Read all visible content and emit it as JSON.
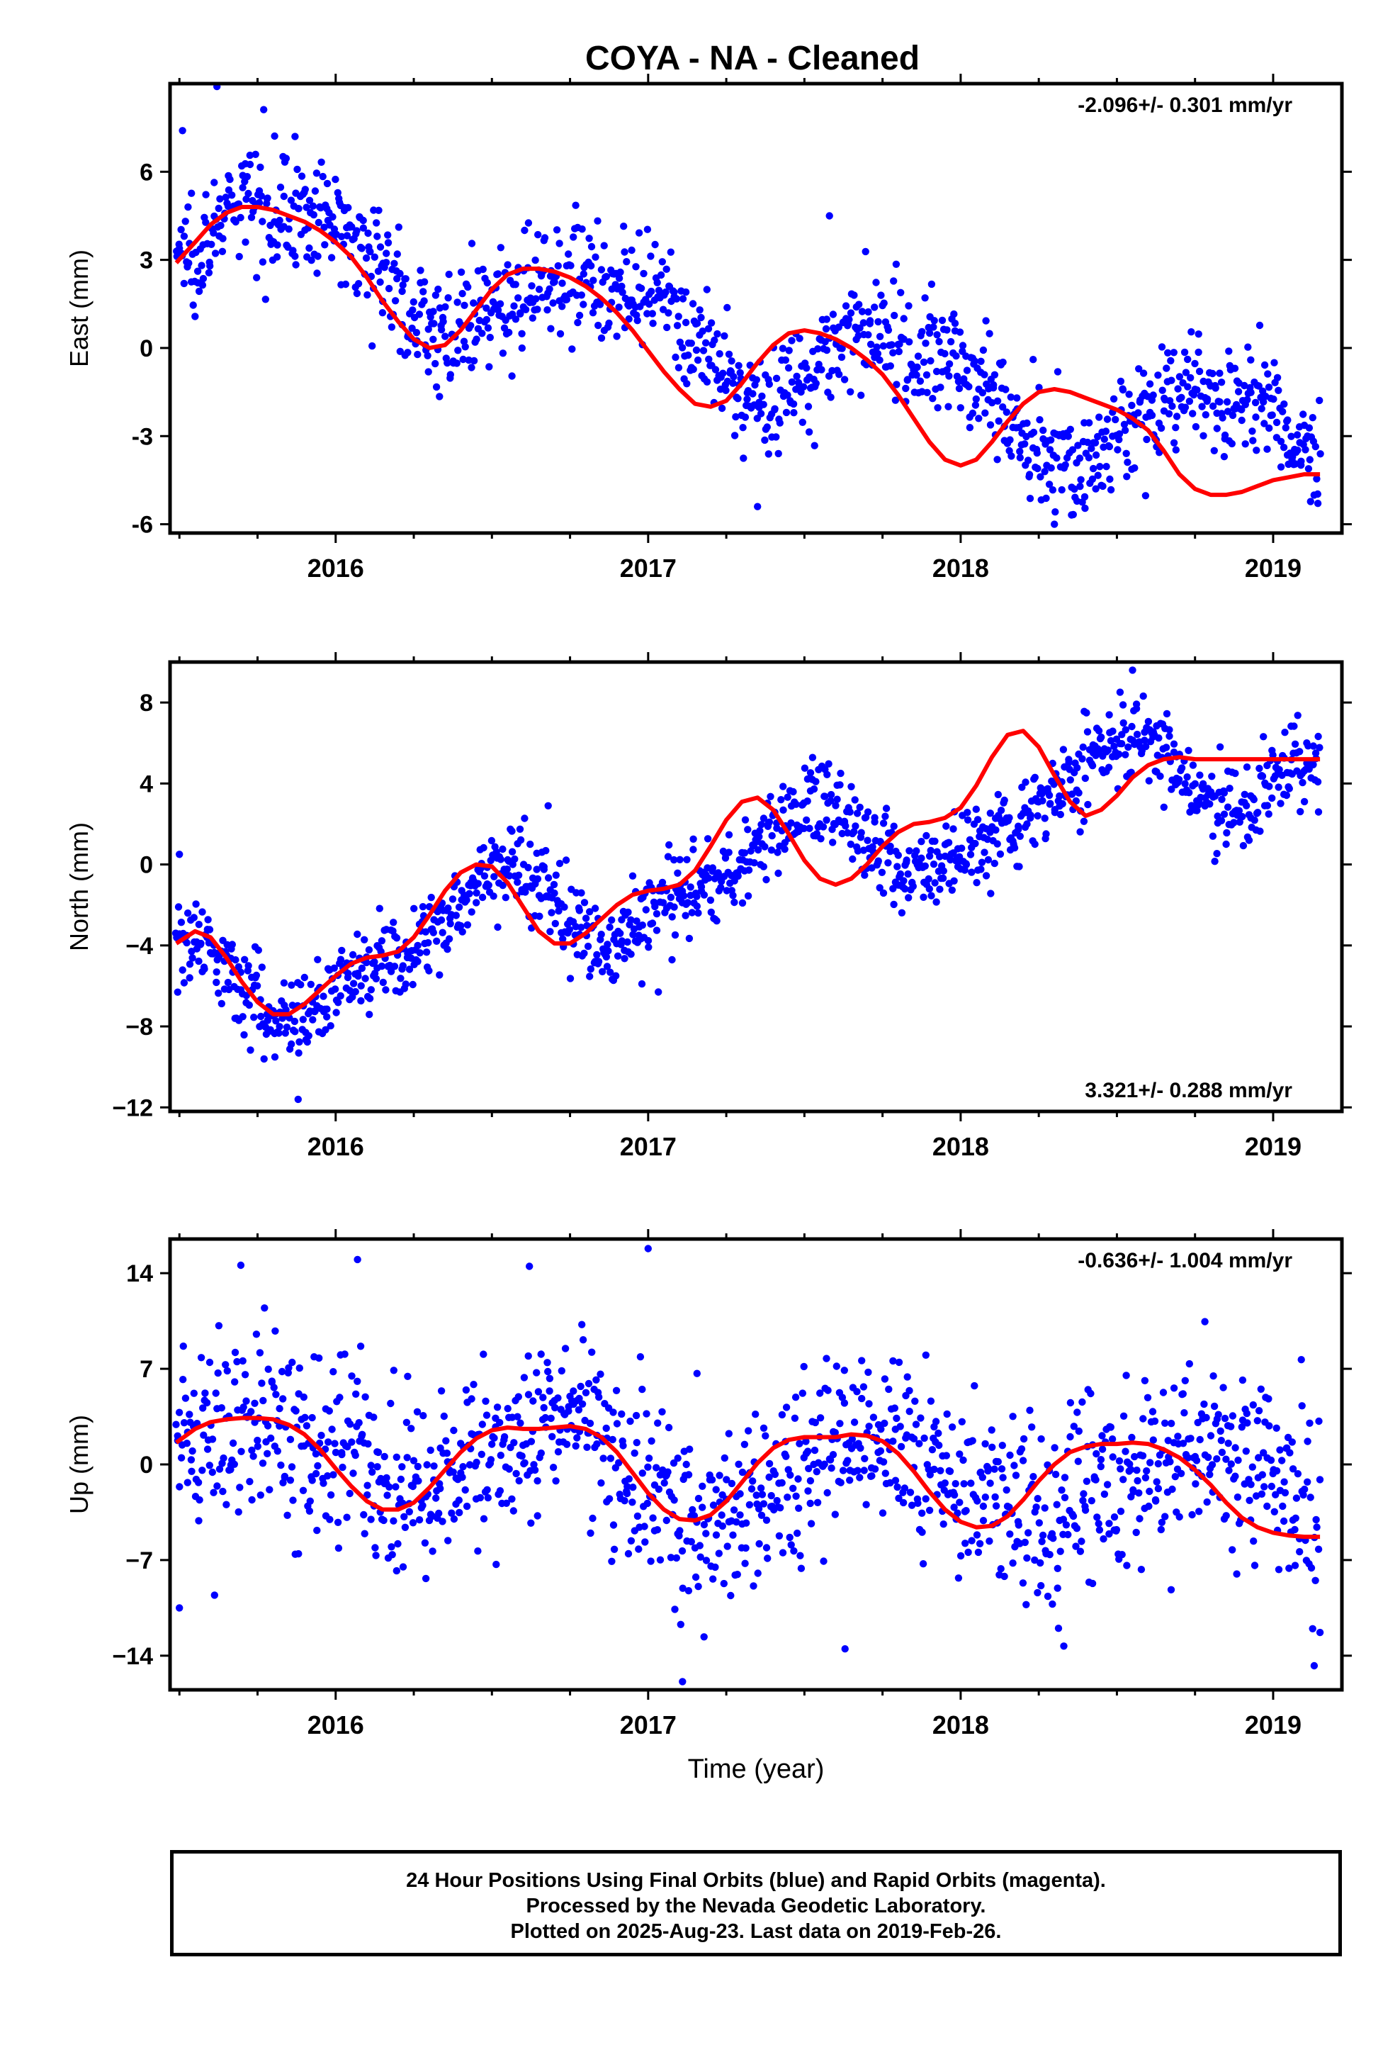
{
  "title": "COYA  - NA - Cleaned",
  "footer": {
    "lines": [
      "24 Hour Positions Using Final Orbits (blue) and Rapid Orbits (magenta).",
      "Processed by the Nevada Geodetic Laboratory.",
      "Plotted on 2025-Aug-23. Last data on 2019-Feb-26."
    ]
  },
  "colors": {
    "points": "#0000ff",
    "fit": "#ff0000",
    "axes": "#000000"
  },
  "chart_data": [
    {
      "type": "scatter",
      "panel": "east",
      "ylabel": "East (mm)",
      "xlabel": "",
      "rate": "-2.096+/- 0.301 mm/yr",
      "rate_position": "top-right",
      "xlim": [
        2015.47,
        2019.22
      ],
      "ylim": [
        -6.3,
        9.0
      ],
      "xticks": [
        2016,
        2017,
        2018,
        2019
      ],
      "xtick_labels": [
        "2016",
        "2017",
        "2018",
        "2019"
      ],
      "yticks": [
        -6,
        -3,
        0,
        3,
        6
      ],
      "ytick_labels": [
        "-6",
        "-3",
        "0",
        "3",
        "6"
      ],
      "series": [
        {
          "kind": "points",
          "x_range": [
            2015.49,
            2019.15
          ],
          "n": 1250,
          "trend": [
            [
              2015.5,
              3.3
            ],
            [
              2015.75,
              5.0
            ],
            [
              2016.0,
              4.2
            ],
            [
              2016.35,
              0.5
            ],
            [
              2016.75,
              2.6
            ],
            [
              2017.0,
              1.6
            ],
            [
              2017.35,
              -1.8
            ],
            [
              2017.7,
              0.5
            ],
            [
              2017.95,
              -0.4
            ],
            [
              2018.35,
              -3.9
            ],
            [
              2018.7,
              -1.6
            ],
            [
              2018.95,
              -2.0
            ],
            [
              2019.15,
              -3.8
            ]
          ],
          "scatter_sd": 0.95,
          "outliers": [
            [
              2015.62,
              8.9
            ],
            [
              2015.51,
              7.4
            ],
            [
              2015.87,
              7.2
            ],
            [
              2016.15,
              1.2
            ],
            [
              2017.35,
              -5.4
            ],
            [
              2018.3,
              -6.0
            ],
            [
              2017.58,
              4.5
            ],
            [
              2016.32,
              1.8
            ]
          ]
        },
        {
          "kind": "fit",
          "x": [
            2015.49,
            2015.55,
            2015.6,
            2015.65,
            2015.7,
            2015.75,
            2015.8,
            2015.85,
            2015.9,
            2015.95,
            2016.0,
            2016.05,
            2016.1,
            2016.15,
            2016.2,
            2016.25,
            2016.3,
            2016.35,
            2016.4,
            2016.45,
            2016.5,
            2016.55,
            2016.6,
            2016.65,
            2016.7,
            2016.75,
            2016.8,
            2016.85,
            2016.9,
            2016.95,
            2017.0,
            2017.05,
            2017.1,
            2017.15,
            2017.2,
            2017.25,
            2017.3,
            2017.35,
            2017.4,
            2017.45,
            2017.5,
            2017.55,
            2017.6,
            2017.65,
            2017.7,
            2017.75,
            2017.8,
            2017.85,
            2017.9,
            2017.95,
            2018.0,
            2018.05,
            2018.1,
            2018.15,
            2018.2,
            2018.25,
            2018.3,
            2018.35,
            2018.4,
            2018.45,
            2018.5,
            2018.55,
            2018.6,
            2018.65,
            2018.7,
            2018.75,
            2018.8,
            2018.85,
            2018.9,
            2018.95,
            2019.0,
            2019.05,
            2019.1,
            2019.15
          ],
          "y": [
            2.9,
            3.6,
            4.2,
            4.6,
            4.8,
            4.8,
            4.7,
            4.5,
            4.3,
            4.0,
            3.6,
            3.1,
            2.4,
            1.6,
            0.9,
            0.3,
            0.0,
            0.1,
            0.6,
            1.3,
            2.0,
            2.5,
            2.7,
            2.7,
            2.6,
            2.4,
            2.1,
            1.7,
            1.2,
            0.6,
            -0.1,
            -0.8,
            -1.4,
            -1.9,
            -2.0,
            -1.8,
            -1.2,
            -0.5,
            0.1,
            0.5,
            0.6,
            0.5,
            0.3,
            0.0,
            -0.4,
            -0.9,
            -1.6,
            -2.4,
            -3.2,
            -3.8,
            -4.0,
            -3.8,
            -3.2,
            -2.5,
            -1.9,
            -1.5,
            -1.4,
            -1.5,
            -1.7,
            -1.9,
            -2.1,
            -2.4,
            -2.8,
            -3.5,
            -4.3,
            -4.8,
            -5.0,
            -5.0,
            -4.9,
            -4.7,
            -4.5,
            -4.4,
            -4.3,
            -4.3
          ]
        }
      ]
    },
    {
      "type": "scatter",
      "panel": "north",
      "ylabel": "North (mm)",
      "xlabel": "",
      "rate": "3.321+/- 0.288 mm/yr",
      "rate_position": "bottom-right",
      "xlim": [
        2015.47,
        2019.22
      ],
      "ylim": [
        -12.2,
        10.0
      ],
      "xticks": [
        2016,
        2017,
        2018,
        2019
      ],
      "xtick_labels": [
        "2016",
        "2017",
        "2018",
        "2019"
      ],
      "yticks": [
        -12,
        -8,
        -4,
        0,
        4,
        8
      ],
      "ytick_labels": [
        "−12",
        "−8",
        "−4",
        "0",
        "4",
        "8"
      ],
      "series": [
        {
          "kind": "points",
          "x_range": [
            2015.49,
            2019.15
          ],
          "n": 1250,
          "trend": [
            [
              2015.5,
              -3.5
            ],
            [
              2015.85,
              -7.3
            ],
            [
              2016.2,
              -4.5
            ],
            [
              2016.55,
              0.0
            ],
            [
              2016.85,
              -3.8
            ],
            [
              2017.15,
              -1.3
            ],
            [
              2017.55,
              3.2
            ],
            [
              2017.85,
              -0.5
            ],
            [
              2018.15,
              1.8
            ],
            [
              2018.55,
              6.3
            ],
            [
              2018.85,
              2.7
            ],
            [
              2019.15,
              5.2
            ]
          ],
          "scatter_sd": 1.05,
          "outliers": [
            [
              2015.5,
              0.5
            ],
            [
              2015.88,
              -11.6
            ],
            [
              2016.68,
              2.9
            ],
            [
              2018.55,
              9.6
            ],
            [
              2017.98,
              2.6
            ],
            [
              2016.98,
              -5.9
            ]
          ]
        },
        {
          "kind": "fit",
          "x": [
            2015.49,
            2015.55,
            2015.6,
            2015.65,
            2015.7,
            2015.75,
            2015.8,
            2015.85,
            2015.9,
            2015.95,
            2016.0,
            2016.05,
            2016.1,
            2016.15,
            2016.2,
            2016.25,
            2016.3,
            2016.35,
            2016.4,
            2016.45,
            2016.5,
            2016.55,
            2016.6,
            2016.65,
            2016.7,
            2016.75,
            2016.8,
            2016.85,
            2016.9,
            2016.95,
            2017.0,
            2017.05,
            2017.1,
            2017.15,
            2017.2,
            2017.25,
            2017.3,
            2017.35,
            2017.4,
            2017.45,
            2017.5,
            2017.55,
            2017.6,
            2017.65,
            2017.7,
            2017.75,
            2017.8,
            2017.85,
            2017.9,
            2017.95,
            2018.0,
            2018.05,
            2018.1,
            2018.15,
            2018.2,
            2018.25,
            2018.3,
            2018.35,
            2018.4,
            2018.45,
            2018.5,
            2018.55,
            2018.6,
            2018.65,
            2018.7,
            2018.75,
            2018.8,
            2018.85,
            2018.9,
            2018.95,
            2019.0,
            2019.05,
            2019.1,
            2019.15
          ],
          "y": [
            -3.9,
            -3.3,
            -3.6,
            -4.6,
            -5.8,
            -6.8,
            -7.4,
            -7.4,
            -6.9,
            -6.2,
            -5.5,
            -4.9,
            -4.6,
            -4.5,
            -4.3,
            -3.6,
            -2.5,
            -1.3,
            -0.4,
            0.0,
            -0.1,
            -0.9,
            -2.1,
            -3.3,
            -3.9,
            -3.9,
            -3.4,
            -2.7,
            -2.0,
            -1.5,
            -1.3,
            -1.2,
            -1.0,
            -0.3,
            0.9,
            2.2,
            3.1,
            3.3,
            2.7,
            1.5,
            0.2,
            -0.7,
            -1.0,
            -0.7,
            0.0,
            0.9,
            1.6,
            2.0,
            2.1,
            2.3,
            2.8,
            3.9,
            5.3,
            6.4,
            6.6,
            5.8,
            4.4,
            3.1,
            2.4,
            2.7,
            3.4,
            4.3,
            4.9,
            5.2,
            5.3,
            5.2,
            5.2,
            5.2,
            5.2,
            5.2,
            5.2,
            5.2,
            5.2,
            5.2
          ]
        }
      ]
    },
    {
      "type": "scatter",
      "panel": "up",
      "ylabel": "Up (mm)",
      "xlabel": "Time (year)",
      "rate": "-0.636+/- 1.004 mm/yr",
      "rate_position": "top-right",
      "xlim": [
        2015.47,
        2019.22
      ],
      "ylim": [
        -16.5,
        16.5
      ],
      "xticks": [
        2016,
        2017,
        2018,
        2019
      ],
      "xtick_labels": [
        "2016",
        "2017",
        "2018",
        "2019"
      ],
      "yticks": [
        -14,
        -7,
        0,
        7,
        14
      ],
      "ytick_labels": [
        "−14",
        "−7",
        "0",
        "7",
        "14"
      ],
      "series": [
        {
          "kind": "points",
          "x_range": [
            2015.49,
            2019.15
          ],
          "n": 1250,
          "trend": [
            [
              2015.5,
              1.5
            ],
            [
              2015.75,
              3.4
            ],
            [
              2016.0,
              1.5
            ],
            [
              2016.2,
              -3.3
            ],
            [
              2016.45,
              0.8
            ],
            [
              2016.75,
              2.8
            ],
            [
              2017.0,
              -1.0
            ],
            [
              2017.2,
              -4.2
            ],
            [
              2017.45,
              -0.8
            ],
            [
              2017.75,
              2.2
            ],
            [
              2018.0,
              -0.8
            ],
            [
              2018.2,
              -4.7
            ],
            [
              2018.45,
              -1.5
            ],
            [
              2018.75,
              1.5
            ],
            [
              2019.0,
              -0.5
            ],
            [
              2019.15,
              -5.2
            ]
          ],
          "scatter_sd": 3.3,
          "outliers": [
            [
              2017.0,
              15.8
            ],
            [
              2016.07,
              15.0
            ],
            [
              2016.62,
              14.5
            ],
            [
              2017.11,
              -15.9
            ],
            [
              2017.63,
              -13.5
            ],
            [
              2018.33,
              -13.3
            ],
            [
              2019.15,
              -12.3
            ],
            [
              2015.5,
              -10.5
            ]
          ]
        },
        {
          "kind": "fit",
          "x": [
            2015.49,
            2015.55,
            2015.6,
            2015.65,
            2015.7,
            2015.75,
            2015.8,
            2015.85,
            2015.9,
            2015.95,
            2016.0,
            2016.05,
            2016.1,
            2016.15,
            2016.2,
            2016.25,
            2016.3,
            2016.35,
            2016.4,
            2016.45,
            2016.5,
            2016.55,
            2016.6,
            2016.65,
            2016.7,
            2016.75,
            2016.8,
            2016.85,
            2016.9,
            2016.95,
            2017.0,
            2017.05,
            2017.1,
            2017.15,
            2017.2,
            2017.25,
            2017.3,
            2017.35,
            2017.4,
            2017.45,
            2017.5,
            2017.55,
            2017.6,
            2017.65,
            2017.7,
            2017.75,
            2017.8,
            2017.85,
            2017.9,
            2017.95,
            2018.0,
            2018.05,
            2018.1,
            2018.15,
            2018.2,
            2018.25,
            2018.3,
            2018.35,
            2018.4,
            2018.45,
            2018.5,
            2018.55,
            2018.6,
            2018.65,
            2018.7,
            2018.75,
            2018.8,
            2018.85,
            2018.9,
            2018.95,
            2019.0,
            2019.05,
            2019.1,
            2019.15
          ],
          "y": [
            1.6,
            2.6,
            3.1,
            3.3,
            3.4,
            3.4,
            3.3,
            2.9,
            2.2,
            1.1,
            -0.3,
            -1.6,
            -2.7,
            -3.3,
            -3.3,
            -2.8,
            -1.7,
            -0.4,
            0.9,
            1.9,
            2.5,
            2.7,
            2.6,
            2.6,
            2.7,
            2.8,
            2.6,
            2.0,
            0.9,
            -0.6,
            -2.1,
            -3.3,
            -4.0,
            -4.1,
            -3.7,
            -2.7,
            -1.3,
            0.1,
            1.2,
            1.8,
            2.0,
            2.0,
            2.0,
            2.2,
            2.1,
            1.7,
            0.8,
            -0.5,
            -2.0,
            -3.3,
            -4.2,
            -4.6,
            -4.5,
            -3.8,
            -2.6,
            -1.2,
            0.0,
            0.9,
            1.3,
            1.5,
            1.5,
            1.6,
            1.5,
            1.1,
            0.5,
            -0.4,
            -1.5,
            -2.8,
            -3.9,
            -4.6,
            -5.0,
            -5.2,
            -5.3,
            -5.3
          ]
        }
      ]
    }
  ]
}
